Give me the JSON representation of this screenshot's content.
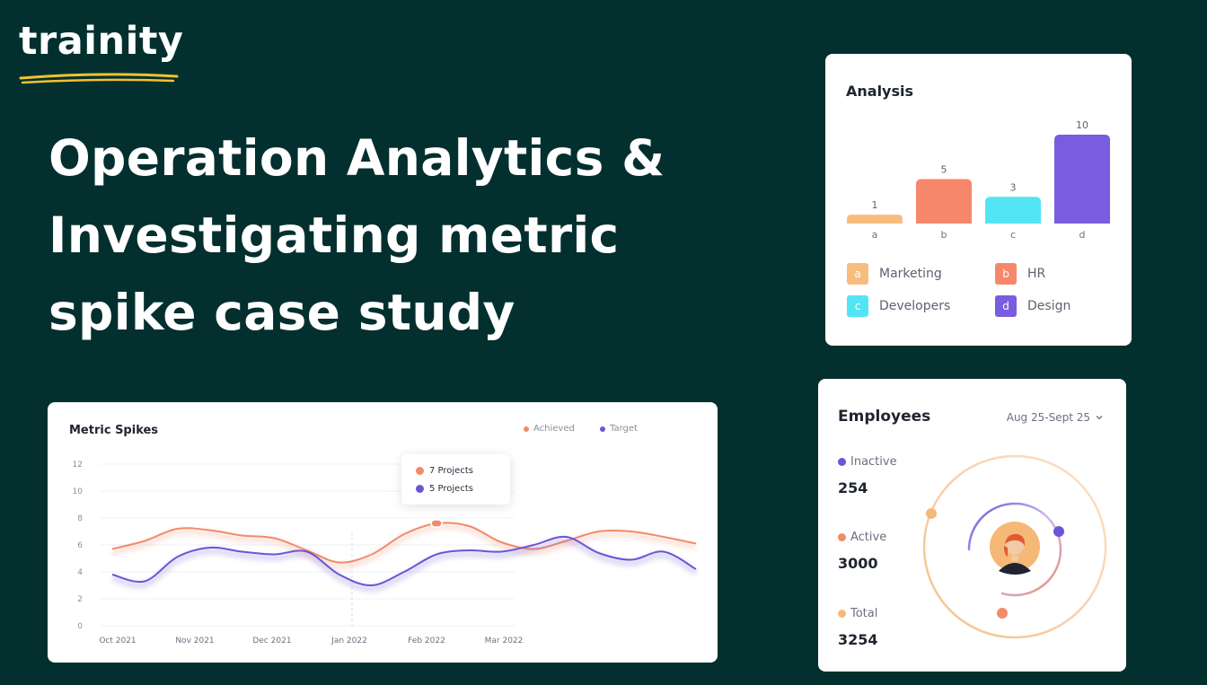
{
  "brand": {
    "name": "trainity",
    "underline_color": "#f2c230"
  },
  "hero": {
    "lines": [
      "Operation Analytics &",
      "Investigating metric",
      "spike case study"
    ]
  },
  "analysis": {
    "title": "Analysis",
    "chart_data": {
      "type": "bar",
      "categories": [
        "a",
        "b",
        "c",
        "d"
      ],
      "values": [
        1,
        5,
        3,
        10
      ],
      "colors": [
        "#f8bc7f",
        "#f7876b",
        "#52e4f4",
        "#7a5ce0"
      ],
      "legend": [
        {
          "key": "a",
          "label": "Marketing"
        },
        {
          "key": "b",
          "label": "HR"
        },
        {
          "key": "c",
          "label": "Developers"
        },
        {
          "key": "d",
          "label": "Design"
        }
      ]
    }
  },
  "metric": {
    "title": "Metric Spikes",
    "legend": {
      "achieved": "Achieved",
      "target": "Target"
    },
    "colors": {
      "achieved": "#f28b6a",
      "target": "#6b55d6"
    },
    "tooltip": {
      "achieved": "7 Projects",
      "target": "5 Projects"
    },
    "chart_data": {
      "type": "line",
      "y_ticks": [
        "12",
        "10",
        "8",
        "6",
        "4",
        "2",
        "0"
      ],
      "x_labels": [
        "Oct 2021",
        "Nov 2021",
        "Dec 2021",
        "Jan 2022",
        "Feb 2022",
        "Mar 2022"
      ],
      "ylim": [
        0,
        12
      ],
      "series": [
        {
          "name": "Achieved",
          "values": [
            5.7,
            6.3,
            7.2,
            7.1,
            6.7,
            6.5,
            5.6,
            4.7,
            5.3,
            6.8,
            7.6,
            7.4,
            6.2,
            5.7,
            6.3,
            7.0,
            7.0,
            6.6,
            6.1
          ]
        },
        {
          "name": "Target",
          "values": [
            3.8,
            3.3,
            5.1,
            5.8,
            5.5,
            5.3,
            5.5,
            3.8,
            3.0,
            4.0,
            5.3,
            5.6,
            5.5,
            6.0,
            6.6,
            5.4,
            4.9,
            5.5,
            4.2
          ]
        }
      ]
    }
  },
  "employees": {
    "title": "Employees",
    "date_range": "Aug 25-Sept 25",
    "stats": [
      {
        "label": "Inactive",
        "value": "254",
        "color": "#6b55d6"
      },
      {
        "label": "Active",
        "value": "3000",
        "color": "#f28b6a"
      },
      {
        "label": "Total",
        "value": "3254",
        "color": "#f5b97a"
      }
    ]
  }
}
